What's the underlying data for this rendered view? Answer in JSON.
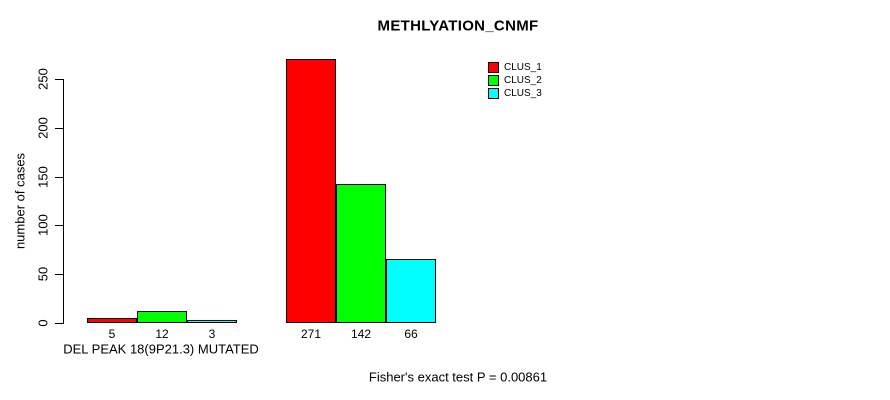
{
  "chart": {
    "background": "#ffffff",
    "axis_color": "#000000",
    "text_color": "#000000"
  },
  "chart_data": {
    "type": "bar",
    "title": "METHLYATION_CNMF",
    "xlabel": "",
    "ylabel": "number of cases",
    "categories": [
      "DEL PEAK 18(9P21.3) MUTATED",
      ""
    ],
    "series": [
      {
        "name": "CLUS_1",
        "color": "#ff0000",
        "values": [
          5,
          271
        ]
      },
      {
        "name": "CLUS_2",
        "color": "#00ff00",
        "values": [
          12,
          142
        ]
      },
      {
        "name": "CLUS_3",
        "color": "#00ffff",
        "values": [
          3,
          66
        ]
      }
    ],
    "bar_value_labels": [
      [
        "5",
        "12",
        "3"
      ],
      [
        "271",
        "142",
        "66"
      ]
    ],
    "yticks": [
      "0",
      "50",
      "100",
      "150",
      "200",
      "250"
    ],
    "ylim": [
      0,
      271
    ],
    "grid": false,
    "legend_position": "top-right",
    "annotation": "Fisher's exact test P = 0.00861"
  }
}
